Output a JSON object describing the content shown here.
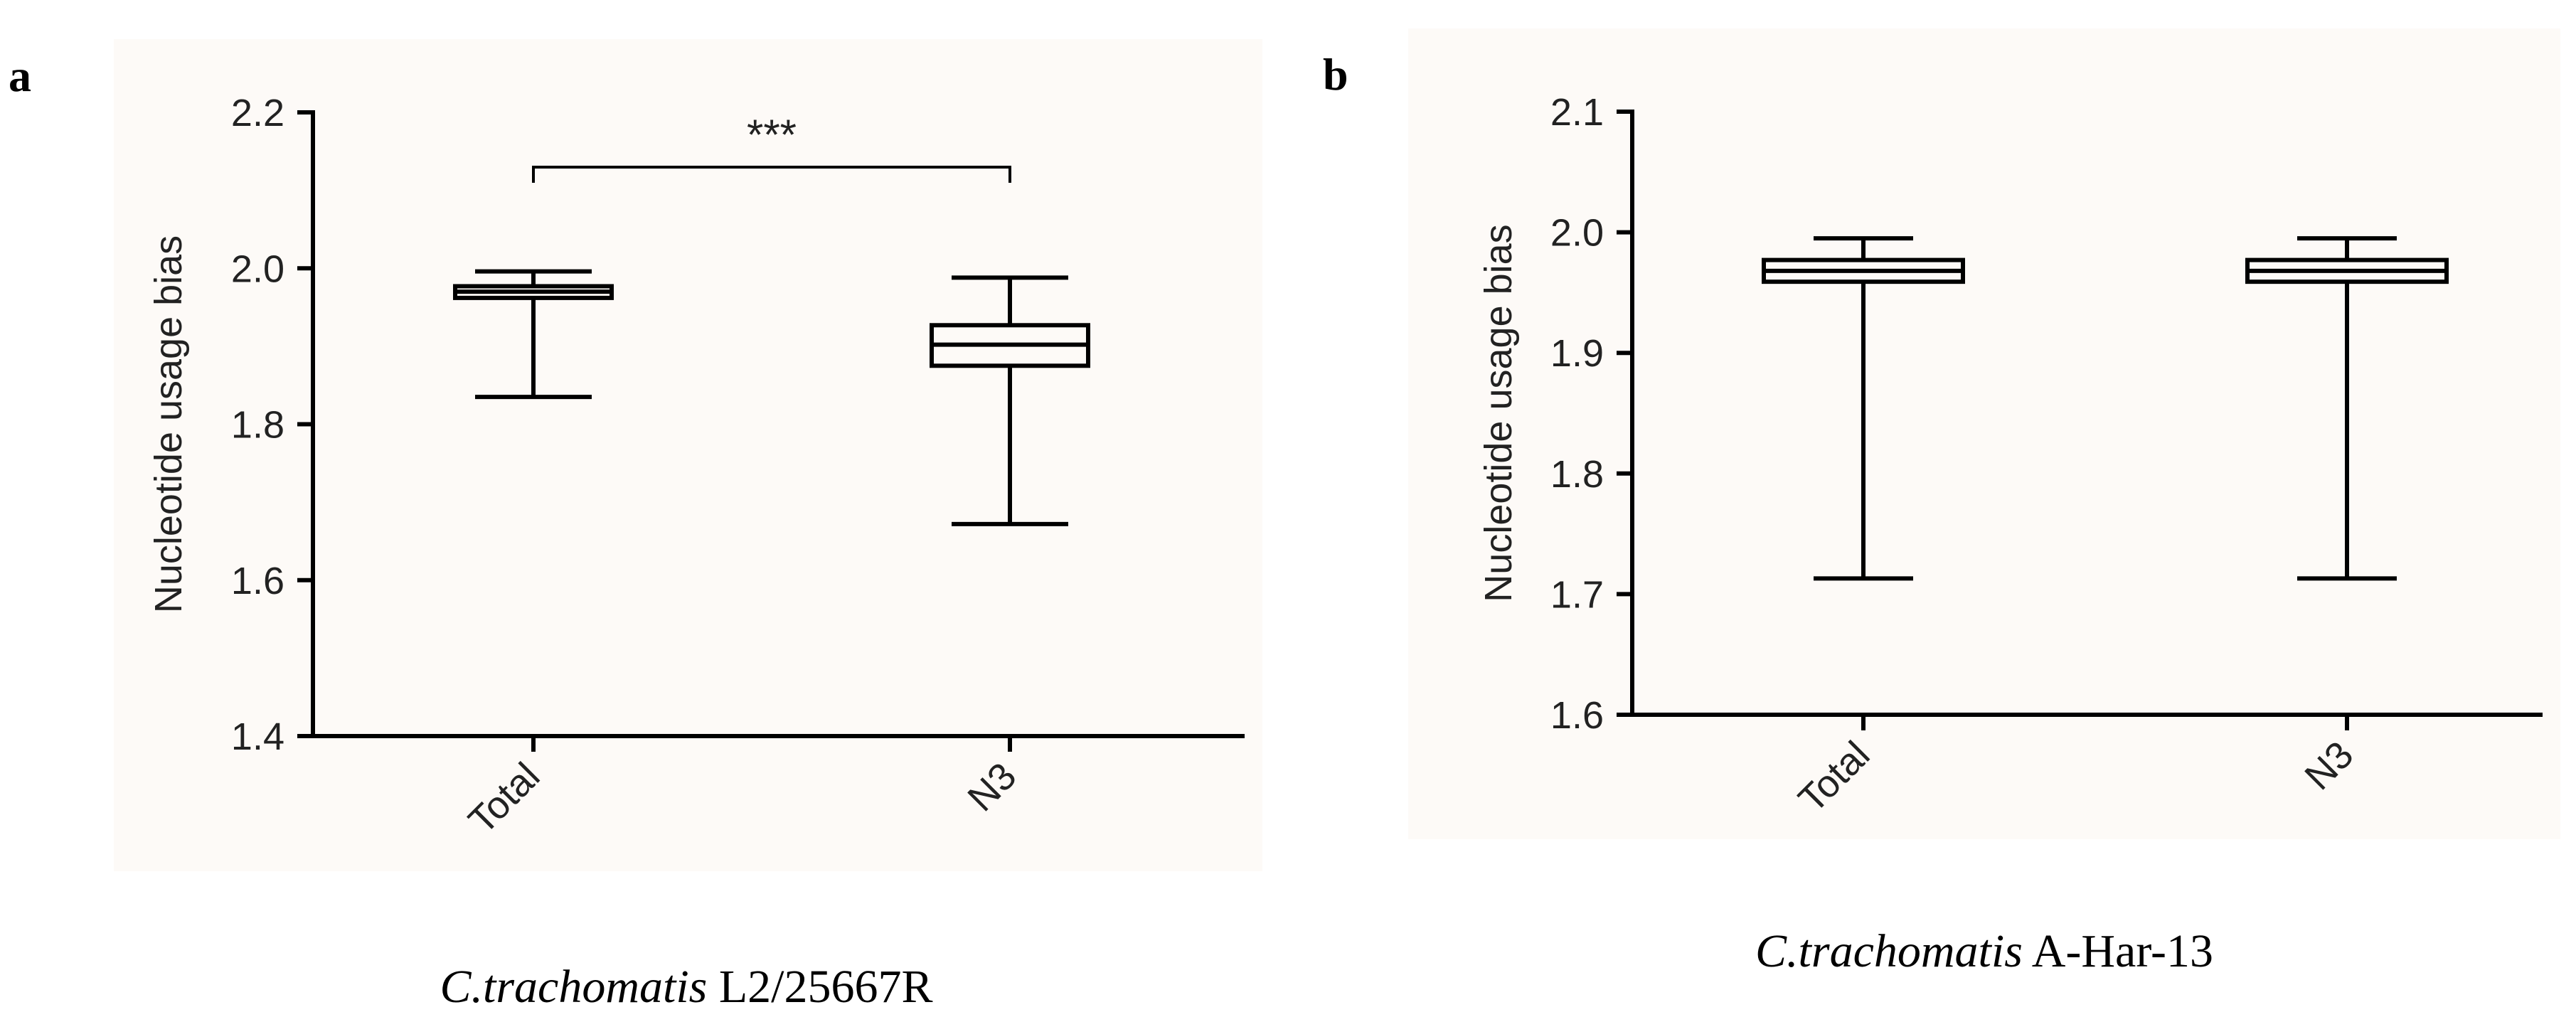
{
  "figure": {
    "background": "#fdfaf7",
    "panels": [
      {
        "letter": "a",
        "caption_species": "C.trachomatis",
        "caption_strain": "L2/25667R"
      },
      {
        "letter": "b",
        "caption_species": "C.trachomatis",
        "caption_strain": "A-Har-13"
      }
    ]
  },
  "chart_data": [
    {
      "type": "box",
      "ylabel": "Nucleotide usage bias",
      "ylim": [
        1.4,
        2.2
      ],
      "yticks": [
        "1.4",
        "1.6",
        "1.8",
        "2.0",
        "2.2"
      ],
      "categories": [
        "Total",
        "N3"
      ],
      "boxes": [
        {
          "category": "Total",
          "min": 1.835,
          "q1": 1.962,
          "median": 1.97,
          "q3": 1.977,
          "max": 1.996
        },
        {
          "category": "N3",
          "min": 1.672,
          "q1": 1.875,
          "median": 1.902,
          "q3": 1.927,
          "max": 1.988
        }
      ],
      "significance": {
        "between": [
          "Total",
          "N3"
        ],
        "label": "***"
      }
    },
    {
      "type": "box",
      "ylabel": "Nucleotide usage bias",
      "ylim": [
        1.6,
        2.1
      ],
      "yticks": [
        "1.6",
        "1.7",
        "1.8",
        "1.9",
        "2.0",
        "2.1"
      ],
      "categories": [
        "Total",
        "N3"
      ],
      "boxes": [
        {
          "category": "Total",
          "min": 1.713,
          "q1": 1.959,
          "median": 1.968,
          "q3": 1.977,
          "max": 1.995
        },
        {
          "category": "N3",
          "min": 1.713,
          "q1": 1.959,
          "median": 1.968,
          "q3": 1.977,
          "max": 1.995
        }
      ]
    }
  ]
}
